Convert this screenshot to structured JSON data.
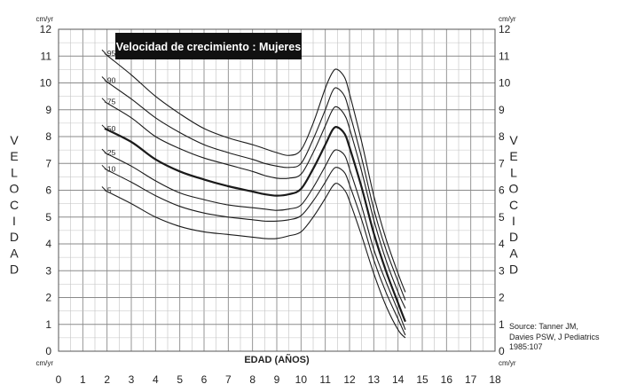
{
  "chart_data": {
    "type": "line",
    "title": "Velocidad de crecimiento : Mujeres",
    "xlabel": "EDAD (AÑOS)",
    "ylabel": "VELOCIDAD",
    "yunit": "cm/yr",
    "xlim": [
      0,
      18
    ],
    "ylim": [
      0,
      12
    ],
    "x_ticks": [
      "0",
      "1",
      "2",
      "3",
      "4",
      "5",
      "6",
      "7",
      "8",
      "9",
      "10",
      "11",
      "12",
      "13",
      "14",
      "15",
      "16",
      "17",
      "18"
    ],
    "y_ticks": [
      "0",
      "1",
      "2",
      "3",
      "4",
      "5",
      "6",
      "7",
      "8",
      "9",
      "10",
      "11",
      "12"
    ],
    "grid": true,
    "series": [
      {
        "name": "95",
        "bold": false,
        "x": [
          1.9,
          3,
          4,
          5,
          6,
          7,
          8,
          8.5,
          9,
          9.5,
          10,
          10.5,
          11,
          11.3,
          11.5,
          11.8,
          12,
          12.5,
          13,
          13.5,
          14,
          14.3
        ],
        "y": [
          11.1,
          10.3,
          9.5,
          8.85,
          8.3,
          7.95,
          7.7,
          7.55,
          7.4,
          7.3,
          7.5,
          8.5,
          9.8,
          10.4,
          10.5,
          10.2,
          9.6,
          7.8,
          5.8,
          4.2,
          2.9,
          2.2
        ]
      },
      {
        "name": "90",
        "bold": false,
        "x": [
          1.9,
          3,
          4,
          5,
          6,
          7,
          8,
          8.5,
          9,
          9.5,
          10,
          10.5,
          11,
          11.3,
          11.5,
          11.8,
          12,
          12.5,
          13,
          13.5,
          14,
          14.3
        ],
        "y": [
          10.1,
          9.4,
          8.7,
          8.15,
          7.7,
          7.4,
          7.15,
          7.0,
          6.9,
          6.85,
          7.0,
          7.9,
          9.0,
          9.7,
          9.8,
          9.5,
          8.9,
          7.2,
          5.3,
          3.8,
          2.6,
          1.9
        ]
      },
      {
        "name": "75",
        "bold": false,
        "x": [
          1.9,
          3,
          4,
          5,
          6,
          7,
          8,
          8.5,
          9,
          9.5,
          10,
          10.5,
          11,
          11.3,
          11.5,
          11.8,
          12,
          12.5,
          13,
          13.5,
          14,
          14.3
        ],
        "y": [
          9.3,
          8.7,
          8.0,
          7.55,
          7.2,
          6.95,
          6.7,
          6.55,
          6.45,
          6.45,
          6.6,
          7.4,
          8.4,
          9.0,
          9.1,
          8.8,
          8.3,
          6.7,
          4.9,
          3.4,
          2.2,
          1.6
        ]
      },
      {
        "name": "50",
        "bold": true,
        "x": [
          1.9,
          3,
          4,
          5,
          6,
          7,
          8,
          8.5,
          9,
          9.5,
          10,
          10.5,
          11,
          11.3,
          11.5,
          11.8,
          12,
          12.5,
          13,
          13.5,
          14,
          14.3
        ],
        "y": [
          8.3,
          7.8,
          7.15,
          6.7,
          6.4,
          6.15,
          5.95,
          5.85,
          5.8,
          5.85,
          6.05,
          6.8,
          7.7,
          8.25,
          8.35,
          8.1,
          7.6,
          6.1,
          4.4,
          3.0,
          1.8,
          1.1
        ]
      },
      {
        "name": "25",
        "bold": false,
        "x": [
          1.9,
          3,
          4,
          5,
          6,
          7,
          8,
          8.5,
          9,
          9.5,
          10,
          10.5,
          11,
          11.3,
          11.5,
          11.8,
          12,
          12.5,
          13,
          13.5,
          14,
          14.3
        ],
        "y": [
          7.4,
          6.9,
          6.35,
          5.9,
          5.65,
          5.45,
          5.35,
          5.3,
          5.25,
          5.3,
          5.45,
          6.1,
          6.9,
          7.4,
          7.5,
          7.3,
          6.8,
          5.4,
          3.8,
          2.6,
          1.5,
          0.8
        ]
      },
      {
        "name": "10",
        "bold": false,
        "x": [
          1.9,
          3,
          4,
          5,
          6,
          7,
          8,
          8.5,
          9,
          9.5,
          10,
          10.5,
          11,
          11.3,
          11.5,
          11.8,
          12,
          12.5,
          13,
          13.5,
          14,
          14.3
        ],
        "y": [
          6.8,
          6.3,
          5.8,
          5.4,
          5.15,
          5.0,
          4.9,
          4.85,
          4.85,
          4.9,
          5.05,
          5.6,
          6.3,
          6.75,
          6.85,
          6.65,
          6.2,
          4.9,
          3.4,
          2.2,
          1.2,
          0.6
        ]
      },
      {
        "name": "5",
        "bold": false,
        "x": [
          1.9,
          3,
          4,
          5,
          6,
          7,
          8,
          8.5,
          9,
          9.5,
          10,
          10.5,
          11,
          11.3,
          11.5,
          11.8,
          12,
          12.5,
          13,
          13.5,
          14,
          14.3
        ],
        "y": [
          6.0,
          5.5,
          5.0,
          4.65,
          4.45,
          4.35,
          4.25,
          4.2,
          4.2,
          4.3,
          4.45,
          5.0,
          5.7,
          6.15,
          6.25,
          6.0,
          5.6,
          4.3,
          2.9,
          1.7,
          0.8,
          0.5
        ]
      }
    ]
  },
  "source": {
    "line1": "Source: Tanner JM,",
    "line2": "Davies PSW, J Pediatrics",
    "line3": "1985:107"
  }
}
